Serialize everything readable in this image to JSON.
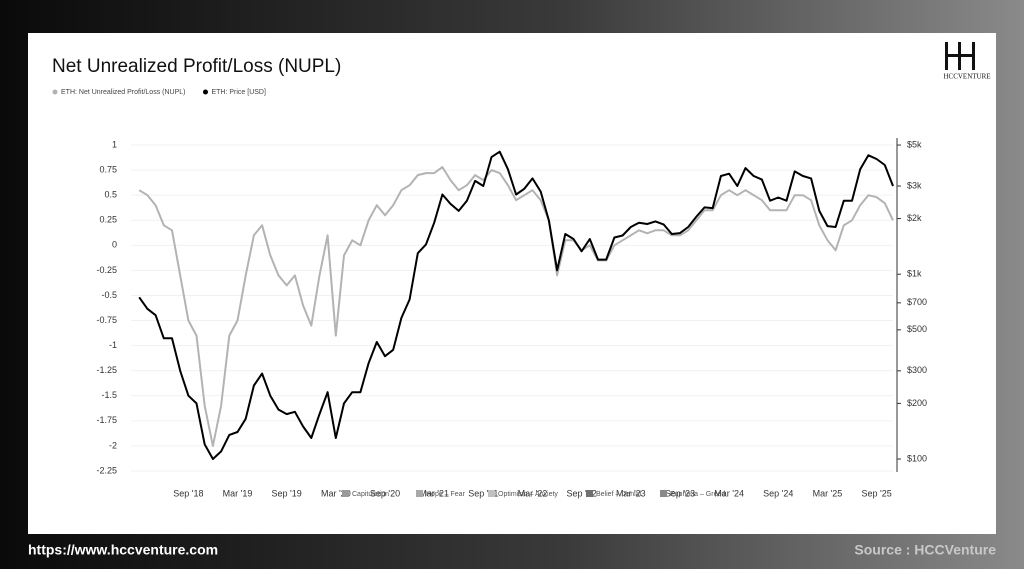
{
  "logo": "HCCVENTURE",
  "footer": {
    "url": "https://www.hccventure.com",
    "source": "Source : HCCVenture"
  },
  "chart_data": {
    "type": "line",
    "title": "Net Unrealized Profit/Loss (NUPL)",
    "x": [
      "2018-03",
      "2018-04",
      "2018-05",
      "2018-06",
      "2018-07",
      "2018-08",
      "2018-09",
      "2018-10",
      "2018-11",
      "2018-12",
      "2019-01",
      "2019-02",
      "2019-03",
      "2019-04",
      "2019-05",
      "2019-06",
      "2019-07",
      "2019-08",
      "2019-09",
      "2019-10",
      "2019-11",
      "2019-12",
      "2020-01",
      "2020-02",
      "2020-03",
      "2020-04",
      "2020-05",
      "2020-06",
      "2020-07",
      "2020-08",
      "2020-09",
      "2020-10",
      "2020-11",
      "2020-12",
      "2021-01",
      "2021-02",
      "2021-03",
      "2021-04",
      "2021-05",
      "2021-06",
      "2021-07",
      "2021-08",
      "2021-09",
      "2021-10",
      "2021-11",
      "2021-12",
      "2022-01",
      "2022-02",
      "2022-03",
      "2022-04",
      "2022-05",
      "2022-06",
      "2022-07",
      "2022-08",
      "2022-09",
      "2022-10",
      "2022-11",
      "2022-12",
      "2023-01",
      "2023-02",
      "2023-03",
      "2023-04",
      "2023-05",
      "2023-06",
      "2023-07",
      "2023-08",
      "2023-09",
      "2023-10",
      "2023-11",
      "2023-12",
      "2024-01",
      "2024-02",
      "2024-03",
      "2024-04",
      "2024-05",
      "2024-06",
      "2024-07",
      "2024-08",
      "2024-09",
      "2024-10",
      "2024-11",
      "2024-12",
      "2025-01",
      "2025-02",
      "2025-03",
      "2025-04",
      "2025-05",
      "2025-06",
      "2025-07",
      "2025-08",
      "2025-09",
      "2025-10",
      "2025-11"
    ],
    "series": [
      {
        "name": "ETH: Net Unrealized Profit/Loss (NUPL)",
        "color": "#b3b3b3",
        "values": [
          0.55,
          0.5,
          0.4,
          0.2,
          0.15,
          -0.3,
          -0.75,
          -0.9,
          -1.6,
          -2.0,
          -1.6,
          -0.9,
          -0.75,
          -0.3,
          0.1,
          0.2,
          -0.1,
          -0.3,
          -0.4,
          -0.3,
          -0.6,
          -0.8,
          -0.3,
          0.1,
          -0.9,
          -0.1,
          0.05,
          0,
          0.25,
          0.4,
          0.3,
          0.4,
          0.55,
          0.6,
          0.7,
          0.72,
          0.72,
          0.78,
          0.65,
          0.55,
          0.6,
          0.7,
          0.65,
          0.75,
          0.72,
          0.6,
          0.45,
          0.5,
          0.55,
          0.45,
          0.25,
          -0.3,
          0.05,
          0.05,
          -0.05,
          0,
          -0.15,
          -0.15,
          0,
          0.05,
          0.1,
          0.15,
          0.12,
          0.15,
          0.15,
          0.1,
          0.1,
          0.15,
          0.25,
          0.35,
          0.35,
          0.5,
          0.55,
          0.5,
          0.55,
          0.5,
          0.45,
          0.35,
          0.35,
          0.35,
          0.5,
          0.5,
          0.45,
          0.2,
          0.05,
          -0.05,
          0.2,
          0.25,
          0.4,
          0.5,
          0.48,
          0.42,
          0.25
        ]
      },
      {
        "name": "ETH: Price [USD]",
        "color": "#000000",
        "axis": "y2",
        "values": [
          750,
          650,
          600,
          450,
          450,
          300,
          220,
          200,
          120,
          100,
          110,
          135,
          140,
          165,
          250,
          290,
          220,
          185,
          175,
          180,
          150,
          130,
          175,
          230,
          130,
          200,
          230,
          230,
          330,
          430,
          360,
          390,
          580,
          730,
          1300,
          1450,
          1900,
          2700,
          2400,
          2200,
          2500,
          3200,
          3000,
          4300,
          4600,
          3700,
          2700,
          2900,
          3300,
          2800,
          1950,
          1050,
          1650,
          1550,
          1330,
          1550,
          1200,
          1200,
          1580,
          1620,
          1800,
          1900,
          1870,
          1930,
          1860,
          1650,
          1670,
          1800,
          2050,
          2300,
          2280,
          3400,
          3500,
          3000,
          3750,
          3400,
          3250,
          2500,
          2600,
          2500,
          3600,
          3400,
          3300,
          2200,
          1820,
          1800,
          2500,
          2500,
          3700,
          4400,
          4200,
          3900,
          3000
        ]
      }
    ],
    "xlim": [
      "2018-02",
      "2025-11"
    ],
    "xticks": [
      {
        "value": "2018-09",
        "label": "Sep '18"
      },
      {
        "value": "2019-03",
        "label": "Mar '19"
      },
      {
        "value": "2019-09",
        "label": "Sep '19"
      },
      {
        "value": "2020-03",
        "label": "Mar '20"
      },
      {
        "value": "2020-09",
        "label": "Sep '20"
      },
      {
        "value": "2021-03",
        "label": "Mar '21"
      },
      {
        "value": "2021-09",
        "label": "Sep '21"
      },
      {
        "value": "2022-03",
        "label": "Mar '22"
      },
      {
        "value": "2022-09",
        "label": "Sep '22"
      },
      {
        "value": "2023-03",
        "label": "Mar '23"
      },
      {
        "value": "2023-09",
        "label": "Sep '23"
      },
      {
        "value": "2024-03",
        "label": "Mar '24"
      },
      {
        "value": "2024-09",
        "label": "Sep '24"
      },
      {
        "value": "2025-03",
        "label": "Mar '25"
      },
      {
        "value": "2025-09",
        "label": "Sep '25"
      }
    ],
    "ylim": [
      -2.34,
      1.15
    ],
    "yticks": [
      1,
      0.75,
      0.5,
      0.25,
      0,
      -0.25,
      -0.5,
      -0.75,
      -1,
      -1.25,
      -1.5,
      -1.75,
      -2,
      -2.25
    ],
    "y2lim": [
      77,
      6030
    ],
    "y2log": true,
    "y2ticks": [
      {
        "value": 5000,
        "label": "$5k"
      },
      {
        "value": 3000,
        "label": "$3k"
      },
      {
        "value": 2000,
        "label": "$2k"
      },
      {
        "value": 1000,
        "label": "$1k"
      },
      {
        "value": 700,
        "label": "$700"
      },
      {
        "value": 500,
        "label": "$500"
      },
      {
        "value": 300,
        "label": "$300"
      },
      {
        "value": 200,
        "label": "$200"
      },
      {
        "value": 100,
        "label": "$100"
      }
    ],
    "grid": true,
    "zone_legend": [
      {
        "name": "Capitulation",
        "color": "#9a9a9a"
      },
      {
        "name": "Hope – Fear",
        "color": "#a8a8a8"
      },
      {
        "name": "Optimism – Anxiety",
        "color": "#c0c0c0"
      },
      {
        "name": "Belief – Denial",
        "color": "#707070"
      },
      {
        "name": "Euphoria – Greed",
        "color": "#8a8a8a"
      }
    ]
  }
}
